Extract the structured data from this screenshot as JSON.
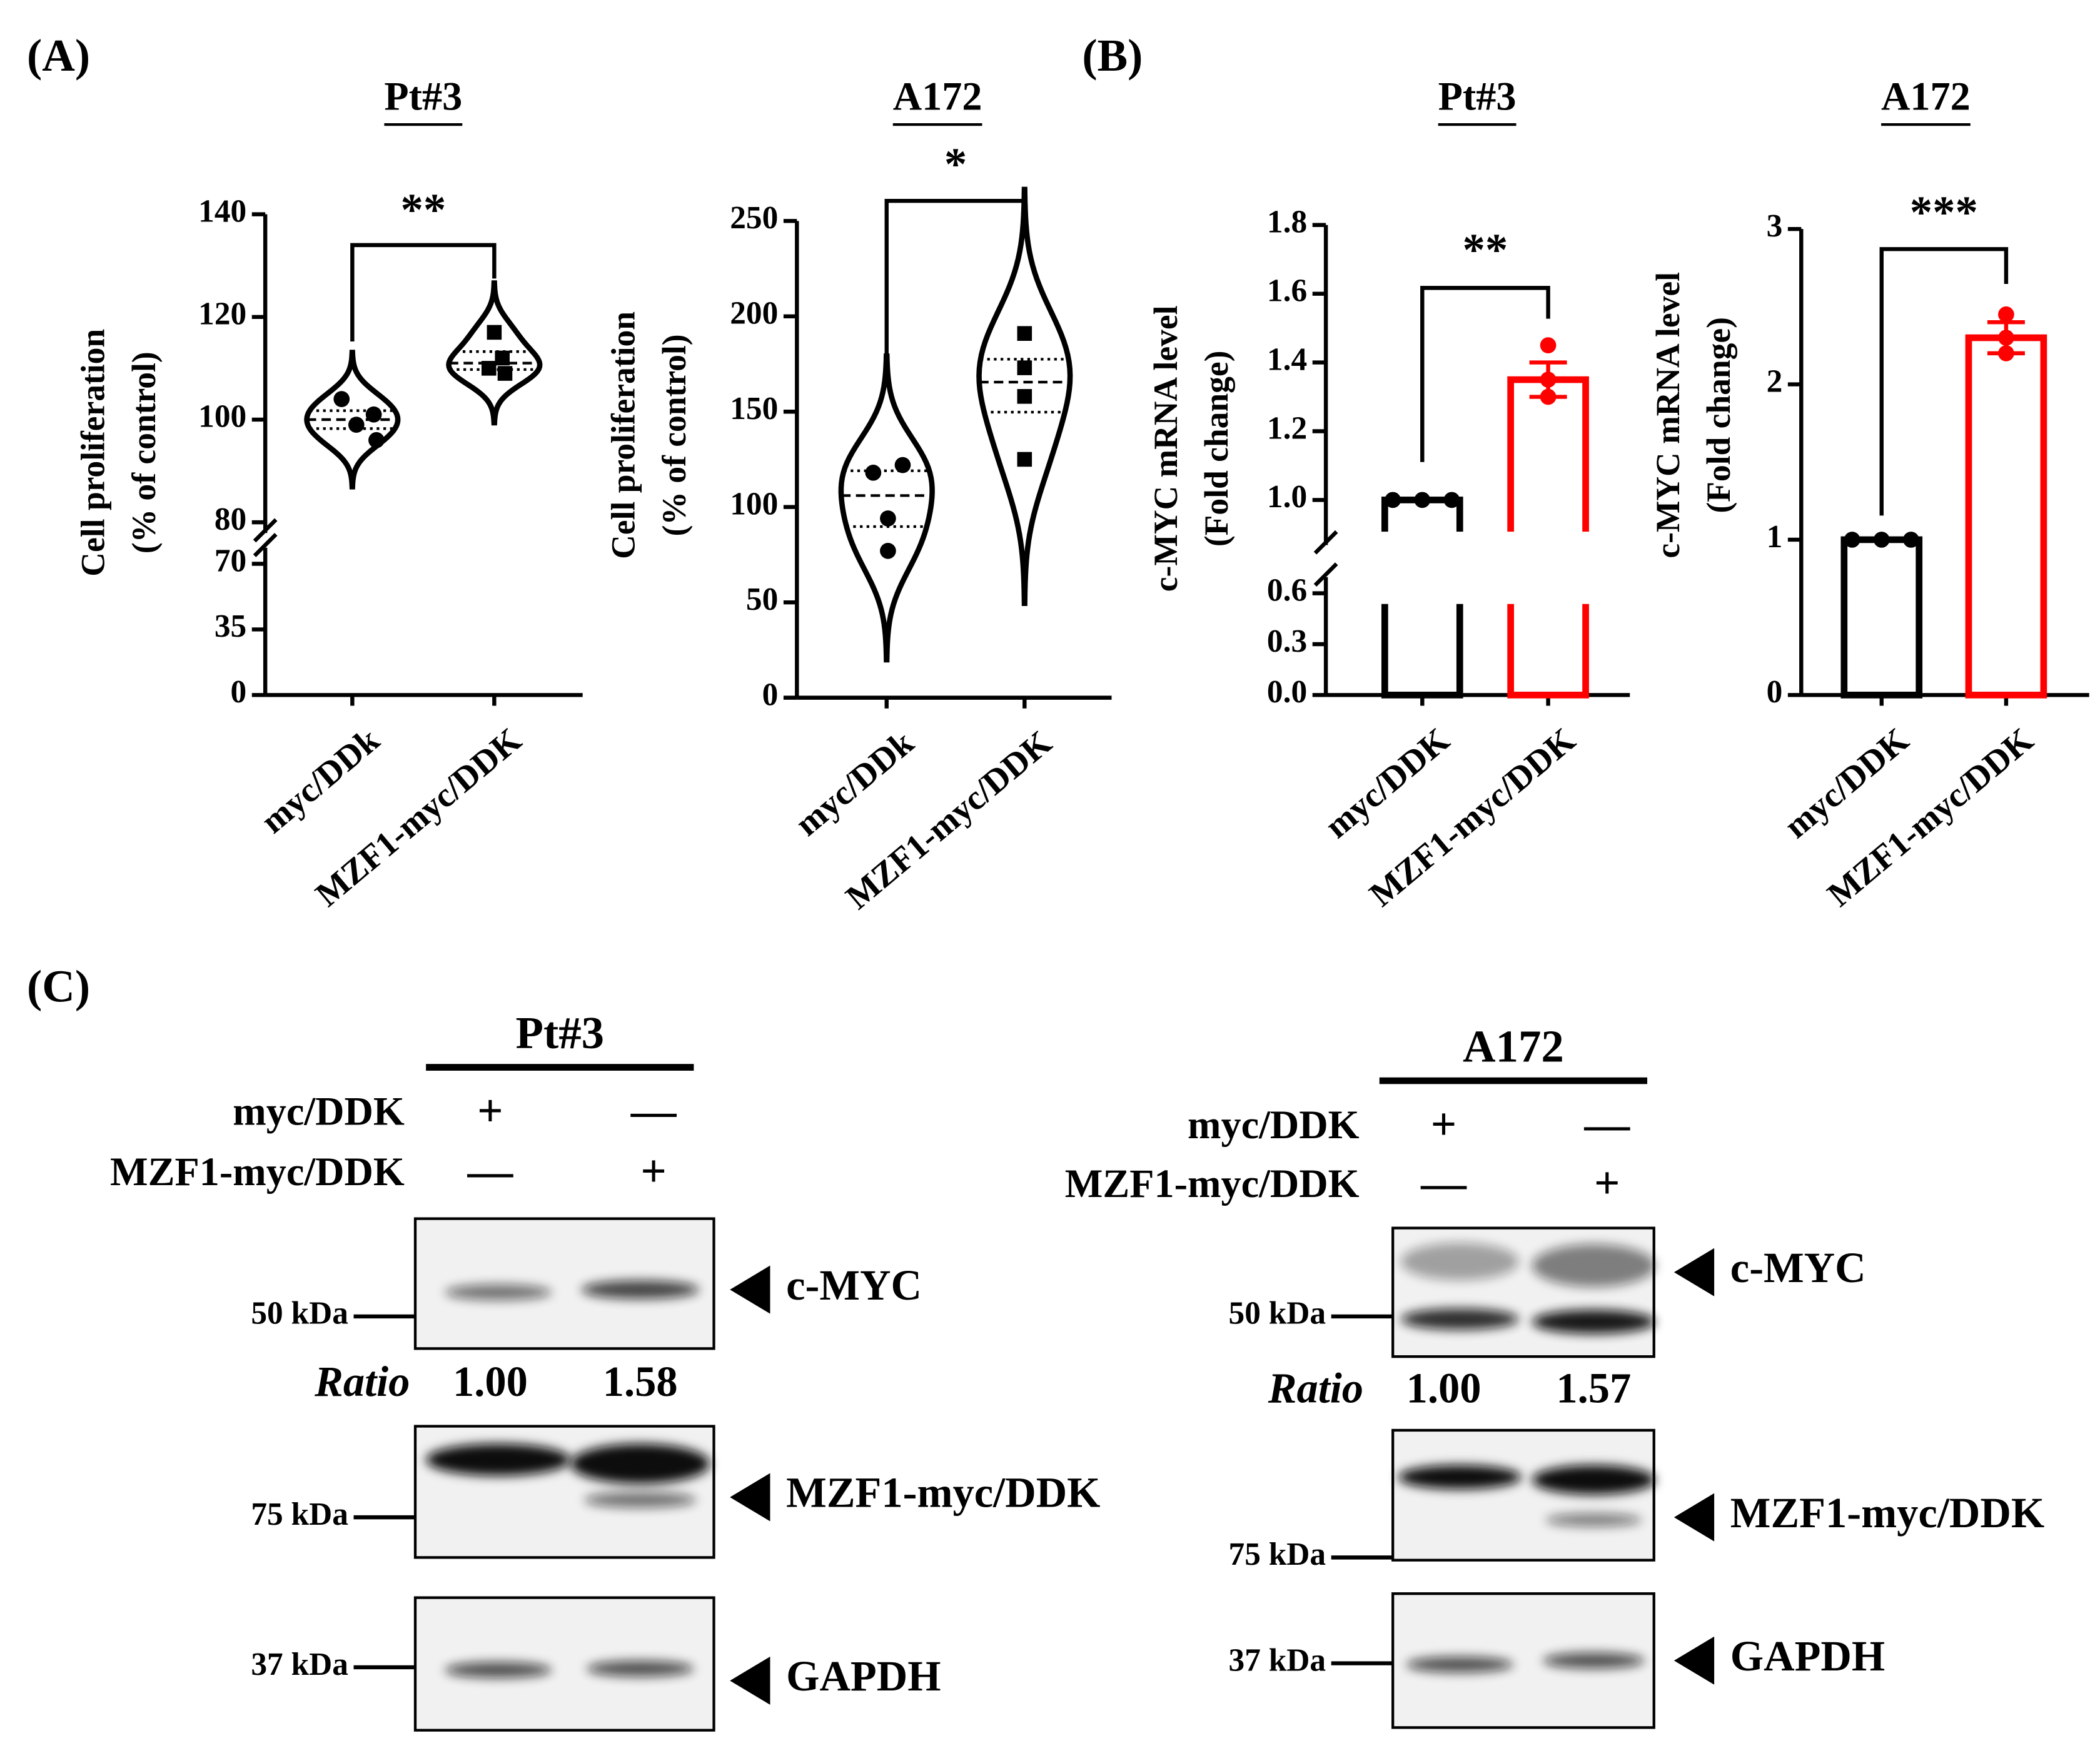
{
  "panels": [
    "(A)",
    "(B)",
    "(C)"
  ],
  "chart_data": [
    {
      "type": "violin",
      "title": "Pt#3",
      "ylabel": [
        "Cell proliferation",
        "(% of control)"
      ],
      "categories": [
        "myc/DDk",
        "MZF1-myc/DDK"
      ],
      "values": [
        [
          104,
          101,
          99,
          96
        ],
        [
          117,
          112,
          110,
          109
        ]
      ],
      "markers": [
        "circle",
        "square"
      ],
      "colors": [
        "#000000",
        "#000000"
      ],
      "ylim": [
        0,
        140
      ],
      "ybreak": [
        70,
        80
      ],
      "yticks": [
        0,
        35,
        70,
        80,
        100,
        120,
        140
      ],
      "significance": "**"
    },
    {
      "type": "violin",
      "title": "A172",
      "ylabel": [
        "Cell proliferation",
        "(% of control)"
      ],
      "categories": [
        "myc/DDk",
        "MZF1-myc/DDK"
      ],
      "values": [
        [
          118,
          122,
          94,
          77
        ],
        [
          191,
          173,
          158,
          125
        ]
      ],
      "markers": [
        "circle",
        "square"
      ],
      "colors": [
        "#000000",
        "#000000"
      ],
      "ylim": [
        0,
        250
      ],
      "yticks": [
        0,
        50,
        100,
        150,
        200,
        250
      ],
      "significance": "*"
    },
    {
      "type": "bar",
      "title": "Pt#3",
      "ylabel": [
        "c-MYC mRNA level",
        "(Fold change)"
      ],
      "categories": [
        "myc/DDK",
        "MZF1-myc/DDK"
      ],
      "values": [
        1.0,
        1.35
      ],
      "errors": [
        0,
        0.05
      ],
      "points": [
        [
          1,
          1,
          1
        ],
        [
          1.45,
          1.35,
          1.3
        ]
      ],
      "colors": [
        "#000000",
        "#ff0000"
      ],
      "ylim": [
        0,
        1.8
      ],
      "ybreak": [
        0.6,
        0.9
      ],
      "yticks": [
        {
          "value": 0,
          "label": "0.0"
        },
        0.3,
        0.6,
        {
          "value": 1,
          "label": "1.0"
        },
        1.2,
        1.4,
        1.6,
        1.8
      ],
      "significance": "**"
    },
    {
      "type": "bar",
      "title": "A172",
      "ylabel": [
        "c-MYC mRNA level",
        "(Fold change)"
      ],
      "categories": [
        "myc/DDK",
        "MZF1-myc/DDK"
      ],
      "values": [
        1.0,
        2.3
      ],
      "errors": [
        0,
        0.1
      ],
      "points": [
        [
          1,
          1,
          1
        ],
        [
          2.45,
          2.3,
          2.2
        ]
      ],
      "colors": [
        "#000000",
        "#ff0000"
      ],
      "ylim": [
        0,
        3
      ],
      "yticks": [
        0,
        1,
        2,
        3
      ],
      "significance": "***"
    }
  ],
  "blots": [
    {
      "title": "Pt#3",
      "conditions": [
        {
          "label": "myc/DDK",
          "lanes": [
            "+",
            "—"
          ]
        },
        {
          "label": "MZF1-myc/DDK",
          "lanes": [
            "—",
            "+"
          ]
        }
      ],
      "blocks": [
        {
          "marker": "50 kDa",
          "target": "c-MYC"
        },
        {
          "marker": "75 kDa",
          "target": "MZF1-myc/DDK"
        },
        {
          "marker": "37 kDa",
          "target": "GAPDH"
        }
      ],
      "ratio_label": "Ratio",
      "ratios": [
        "1.00",
        "1.58"
      ]
    },
    {
      "title": "A172",
      "conditions": [
        {
          "label": "myc/DDK",
          "lanes": [
            "+",
            "—"
          ]
        },
        {
          "label": "MZF1-myc/DDK",
          "lanes": [
            "—",
            "+"
          ]
        }
      ],
      "blocks": [
        {
          "marker": "50 kDa",
          "target": "c-MYC"
        },
        {
          "marker": "75 kDa",
          "target": "MZF1-myc/DDK"
        },
        {
          "marker": "37 kDa",
          "target": "GAPDH"
        }
      ],
      "ratio_label": "Ratio",
      "ratios": [
        "1.00",
        "1.57"
      ]
    }
  ]
}
